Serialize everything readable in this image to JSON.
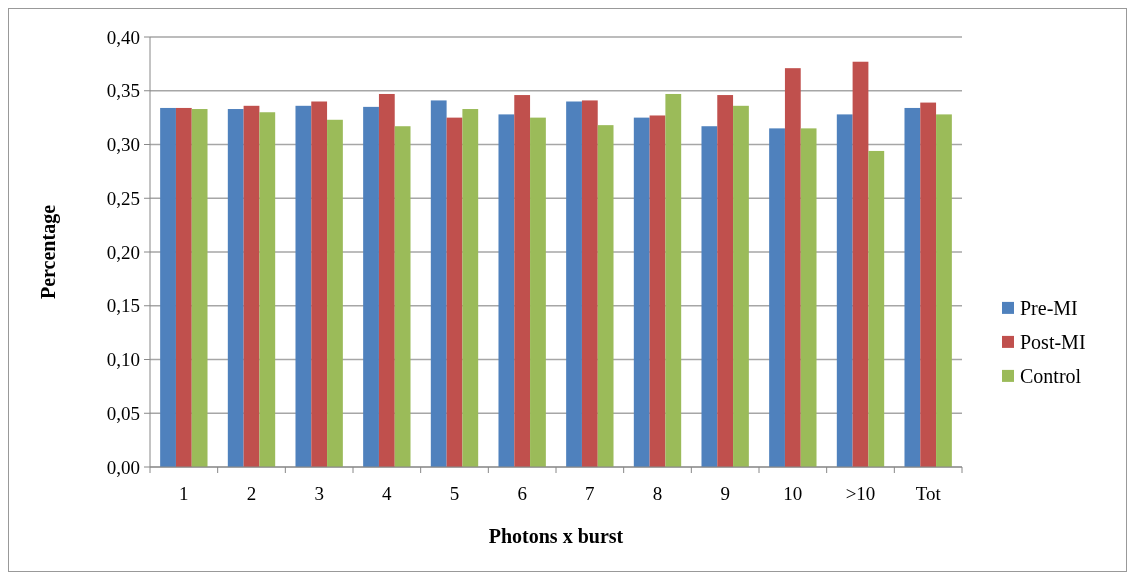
{
  "chart_data": {
    "type": "bar",
    "xlabel": "Photons x burst",
    "ylabel": "Percentage",
    "categories": [
      "1",
      "2",
      "3",
      "4",
      "5",
      "6",
      "7",
      "8",
      "9",
      "10",
      ">10",
      "Tot"
    ],
    "series": [
      {
        "name": "Pre-MI",
        "color": "#4f81bd",
        "values": [
          0.334,
          0.333,
          0.336,
          0.335,
          0.341,
          0.328,
          0.34,
          0.325,
          0.317,
          0.315,
          0.328,
          0.334
        ]
      },
      {
        "name": "Post-MI",
        "color": "#c0504d",
        "values": [
          0.334,
          0.336,
          0.34,
          0.347,
          0.325,
          0.346,
          0.341,
          0.327,
          0.346,
          0.371,
          0.377,
          0.339
        ]
      },
      {
        "name": "Control",
        "color": "#9bbb59",
        "values": [
          0.333,
          0.33,
          0.323,
          0.317,
          0.333,
          0.325,
          0.318,
          0.347,
          0.336,
          0.315,
          0.294,
          0.328
        ]
      }
    ],
    "ylim": [
      0,
      0.4
    ],
    "yticks": [
      {
        "value": 0,
        "label": "0,00"
      },
      {
        "value": 0.05,
        "label": "0,05"
      },
      {
        "value": 0.1,
        "label": "0,10"
      },
      {
        "value": 0.15,
        "label": "0,15"
      },
      {
        "value": 0.2,
        "label": "0,20"
      },
      {
        "value": 0.25,
        "label": "0,25"
      },
      {
        "value": 0.3,
        "label": "0,30"
      },
      {
        "value": 0.35,
        "label": "0,35"
      },
      {
        "value": 0.4,
        "label": "0,40"
      }
    ],
    "grid": "y",
    "legend": "right"
  }
}
